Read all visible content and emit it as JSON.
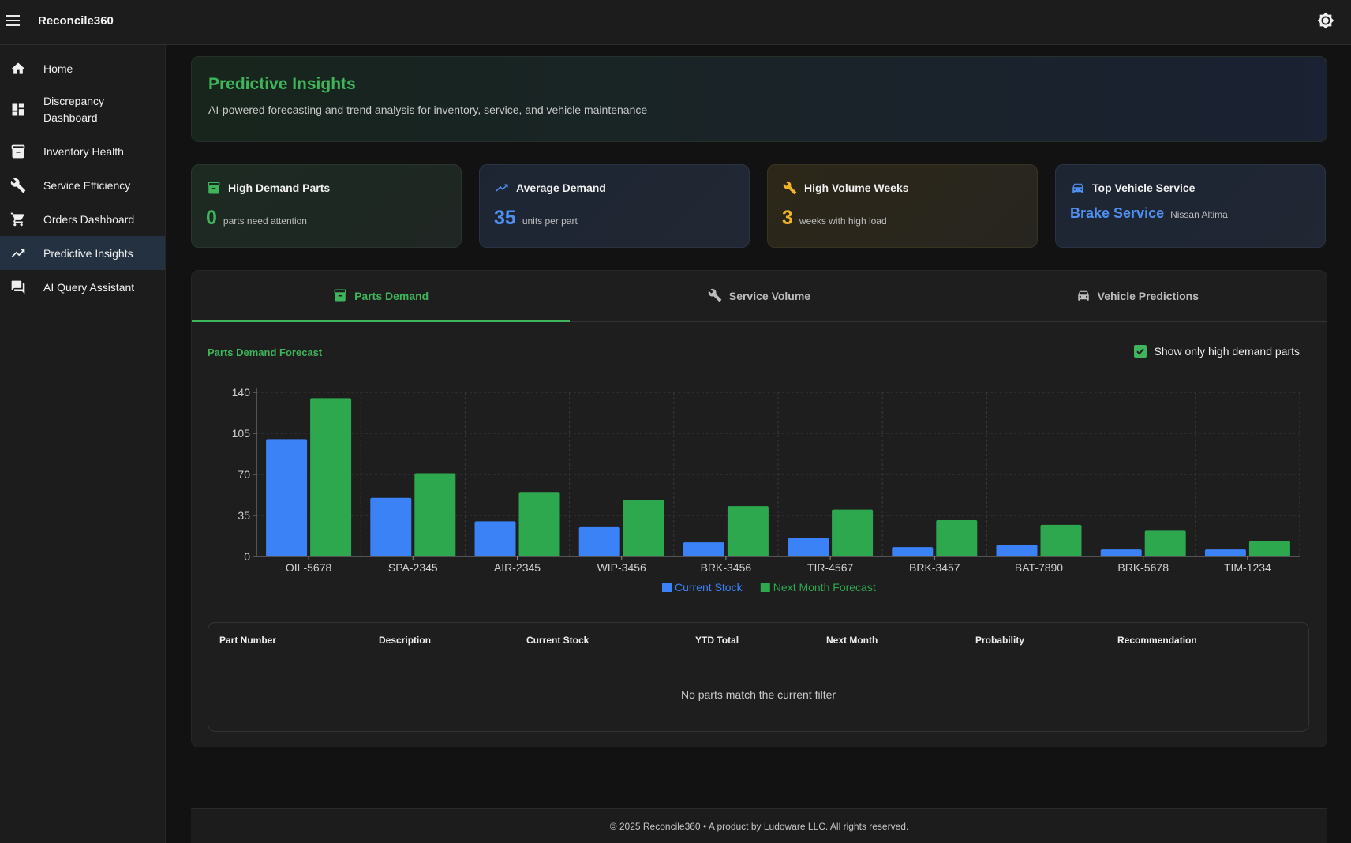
{
  "app": {
    "title": "Reconcile360"
  },
  "sidebar": {
    "items": [
      {
        "label": "Home",
        "icon": "home-icon"
      },
      {
        "label": "Discrepancy\nDashboard",
        "icon": "dashboard-icon"
      },
      {
        "label": "Inventory Health",
        "icon": "inventory-icon"
      },
      {
        "label": "Service Efficiency",
        "icon": "wrench-icon"
      },
      {
        "label": "Orders Dashboard",
        "icon": "cart-icon"
      },
      {
        "label": "Predictive Insights",
        "icon": "trending-up-icon"
      },
      {
        "label": "AI Query Assistant",
        "icon": "chat-icon"
      }
    ]
  },
  "header": {
    "title": "Predictive Insights",
    "subtitle": "AI-powered forecasting and trend analysis for inventory, service, and vehicle maintenance"
  },
  "stats": {
    "high_demand": {
      "title": "High Demand Parts",
      "value": "0",
      "unit": "parts need attention",
      "color": "#3fb45a"
    },
    "avg_demand": {
      "title": "Average Demand",
      "value": "35",
      "unit": "units per part",
      "color": "#4e8ff0"
    },
    "high_volume": {
      "title": "High Volume Weeks",
      "value": "3",
      "unit": "weeks with high load",
      "color": "#f0b429"
    },
    "top_vehicle": {
      "title": "Top Vehicle Service",
      "service": "Brake Service",
      "vehicle": "Nissan Altima"
    }
  },
  "tabs": [
    {
      "label": "Parts Demand",
      "icon": "inventory-icon"
    },
    {
      "label": "Service Volume",
      "icon": "wrench-icon"
    },
    {
      "label": "Vehicle Predictions",
      "icon": "car-icon"
    }
  ],
  "chart_section": {
    "title": "Parts Demand Forecast",
    "filter_label": "Show only high demand parts",
    "filter_checked": true
  },
  "chart_data": {
    "type": "bar",
    "categories": [
      "OIL-5678",
      "SPA-2345",
      "AIR-2345",
      "WIP-3456",
      "BRK-3456",
      "TIR-4567",
      "BRK-3457",
      "BAT-7890",
      "BRK-5678",
      "TIM-1234"
    ],
    "series": [
      {
        "name": "Current Stock",
        "color": "#3b82f6",
        "values": [
          100,
          50,
          30,
          25,
          12,
          16,
          8,
          10,
          6,
          6
        ]
      },
      {
        "name": "Next Month Forecast",
        "color": "#2ea84f",
        "values": [
          135,
          71,
          55,
          48,
          43,
          40,
          31,
          27,
          22,
          13
        ]
      }
    ],
    "ylim": [
      0,
      140
    ],
    "yticks": [
      0,
      35,
      70,
      105,
      140
    ],
    "grid": true,
    "legend": "bottom"
  },
  "table": {
    "columns": [
      "Part Number",
      "Description",
      "Current Stock",
      "YTD Total",
      "Next Month",
      "Probability",
      "Recommendation"
    ],
    "empty_message": "No parts match the current filter"
  },
  "footer": {
    "text": "© 2025 Reconcile360 • A product by Ludoware LLC. All rights reserved."
  }
}
